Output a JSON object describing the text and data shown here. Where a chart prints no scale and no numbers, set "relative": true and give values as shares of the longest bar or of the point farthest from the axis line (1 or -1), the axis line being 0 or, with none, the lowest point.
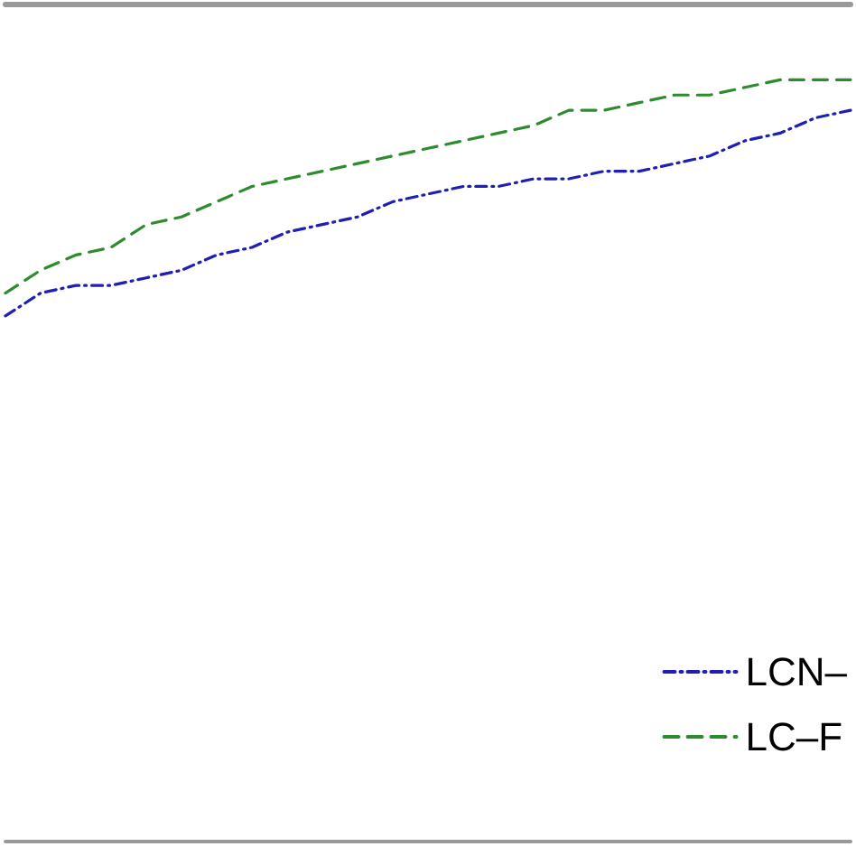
{
  "chart_data": {
    "type": "line",
    "relative": true,
    "legend": "bottom right",
    "grid": false,
    "marker": "none",
    "categories": [
      null,
      null,
      null,
      null,
      null,
      null,
      null,
      null,
      null,
      null,
      null,
      null,
      null,
      null,
      null,
      null,
      null,
      null,
      null,
      null,
      null,
      null,
      null,
      null,
      null
    ],
    "series": [
      {
        "name": "LCN–",
        "color": "#1f1fb4",
        "line_style": "dashdot",
        "values": [
          0.69,
          0.72,
          0.73,
          0.73,
          0.74,
          0.75,
          0.77,
          0.78,
          0.8,
          0.81,
          0.82,
          0.84,
          0.85,
          0.86,
          0.86,
          0.87,
          0.87,
          0.88,
          0.88,
          0.89,
          0.9,
          0.92,
          0.93,
          0.95,
          0.96
        ]
      },
      {
        "name": "LC–F",
        "color": "#2e8b2e",
        "line_style": "dashed",
        "values": [
          0.72,
          0.75,
          0.77,
          0.78,
          0.81,
          0.82,
          0.84,
          0.86,
          0.87,
          0.88,
          0.89,
          0.9,
          0.91,
          0.92,
          0.93,
          0.94,
          0.96,
          0.96,
          0.97,
          0.98,
          0.98,
          0.99,
          1.0,
          1.0,
          1.0
        ]
      }
    ]
  }
}
